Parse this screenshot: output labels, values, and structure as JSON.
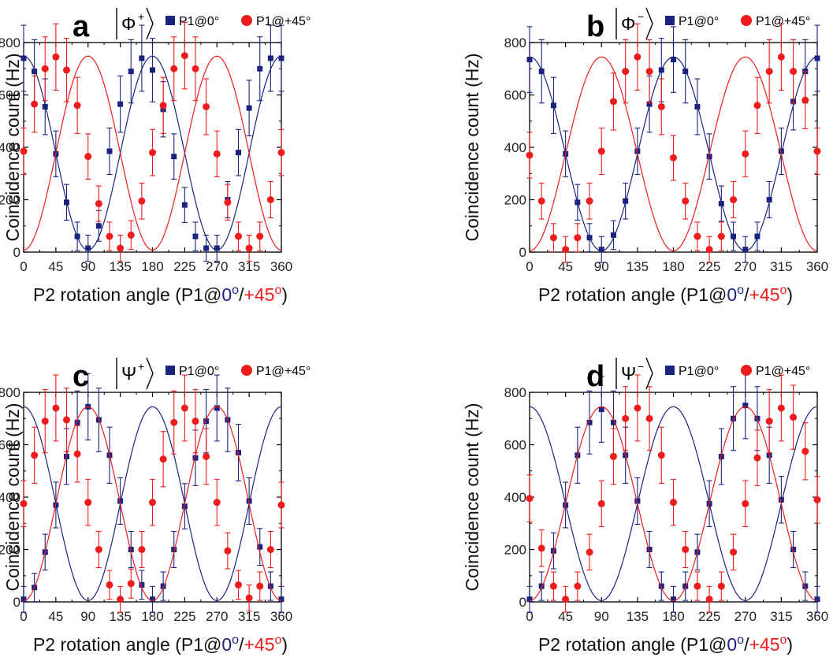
{
  "chart_data": [
    {
      "type": "scatter",
      "panel_label": "a",
      "state": {
        "symbol": "Φ",
        "sign": "+"
      },
      "xlabel": {
        "prefix": "P2 rotation angle (P1@",
        "first": "0",
        "sep": "/",
        "second": "+45",
        "suffix": ")",
        "degree": "o"
      },
      "ylabel": "Coincidence count (Hz)",
      "xlim": [
        0,
        360
      ],
      "ylim": [
        0,
        800
      ],
      "xticks": [
        0,
        45,
        90,
        135,
        180,
        225,
        270,
        315,
        360
      ],
      "yticks": [
        0,
        200,
        400,
        600,
        800
      ],
      "grid": false,
      "legend_position": "top",
      "series": [
        {
          "name": "P1@0°",
          "marker": "square",
          "color": "#1a237e",
          "x": [
            0,
            15,
            30,
            45,
            60,
            75,
            90,
            105,
            120,
            135,
            150,
            165,
            180,
            195,
            210,
            225,
            240,
            255,
            270,
            285,
            300,
            315,
            330,
            345,
            360
          ],
          "y": [
            740,
            690,
            555,
            375,
            190,
            60,
            15,
            100,
            385,
            565,
            690,
            740,
            695,
            545,
            365,
            180,
            60,
            15,
            15,
            200,
            380,
            550,
            700,
            740,
            740
          ],
          "fit": {
            "amplitude": 370,
            "offset": 378,
            "phase_deg": 0
          }
        },
        {
          "name": "P1@+45°",
          "marker": "circle",
          "color": "#ee1c1c",
          "x": [
            0,
            15,
            30,
            45,
            60,
            75,
            90,
            105,
            120,
            135,
            150,
            165,
            180,
            195,
            210,
            225,
            240,
            255,
            270,
            285,
            300,
            315,
            330,
            345,
            360
          ],
          "y": [
            385,
            565,
            700,
            745,
            695,
            560,
            365,
            185,
            60,
            15,
            65,
            195,
            380,
            560,
            700,
            750,
            700,
            555,
            375,
            190,
            60,
            15,
            60,
            200,
            380
          ],
          "fit": {
            "amplitude": 370,
            "offset": 378,
            "phase_deg": 90
          }
        }
      ]
    },
    {
      "type": "scatter",
      "panel_label": "b",
      "state": {
        "symbol": "Φ",
        "sign": "−"
      },
      "xlabel": {
        "prefix": "P2 rotation angle (P1@",
        "first": "0",
        "sep": "/",
        "second": "+45",
        "suffix": ")",
        "degree": "o"
      },
      "ylabel": "Coincidence count (Hz)",
      "xlim": [
        0,
        360
      ],
      "ylim": [
        0,
        800
      ],
      "xticks": [
        0,
        45,
        90,
        135,
        180,
        225,
        270,
        315,
        360
      ],
      "yticks": [
        0,
        200,
        400,
        600,
        800
      ],
      "grid": false,
      "legend_position": "top",
      "series": [
        {
          "name": "P1@0°",
          "marker": "square",
          "color": "#1a237e",
          "x": [
            0,
            15,
            30,
            45,
            60,
            75,
            90,
            105,
            120,
            135,
            150,
            165,
            180,
            195,
            210,
            225,
            240,
            255,
            270,
            285,
            300,
            315,
            330,
            345,
            360
          ],
          "y": [
            735,
            690,
            560,
            375,
            190,
            55,
            10,
            65,
            195,
            385,
            565,
            695,
            735,
            690,
            555,
            365,
            185,
            60,
            10,
            60,
            200,
            385,
            575,
            690,
            740
          ],
          "fit": {
            "amplitude": 370,
            "offset": 375,
            "phase_deg": 0
          }
        },
        {
          "name": "P1@+45°",
          "marker": "circle",
          "color": "#ee1c1c",
          "x": [
            0,
            15,
            30,
            45,
            60,
            75,
            90,
            105,
            120,
            135,
            150,
            165,
            180,
            195,
            210,
            225,
            240,
            255,
            270,
            285,
            300,
            315,
            330,
            345,
            360
          ],
          "y": [
            370,
            195,
            55,
            10,
            55,
            195,
            385,
            575,
            690,
            745,
            690,
            555,
            360,
            195,
            60,
            10,
            60,
            200,
            375,
            560,
            690,
            745,
            690,
            580,
            385
          ],
          "fit": {
            "amplitude": 370,
            "offset": 375,
            "phase_deg": -90
          }
        }
      ]
    },
    {
      "type": "scatter",
      "panel_label": "c",
      "state": {
        "symbol": "Ψ",
        "sign": "+"
      },
      "xlabel": {
        "prefix": "P2 rotation angle (P1@",
        "first": "0",
        "sep": "/",
        "second": "+45",
        "suffix": ")",
        "degree": "o"
      },
      "ylabel": "Coincidence count (Hz)",
      "xlim": [
        0,
        360
      ],
      "ylim": [
        0,
        800
      ],
      "xticks": [
        0,
        45,
        90,
        135,
        180,
        225,
        270,
        315,
        360
      ],
      "yticks": [
        0,
        200,
        400,
        600,
        800
      ],
      "grid": false,
      "legend_position": "top",
      "series": [
        {
          "name": "P1@0°",
          "marker": "square",
          "color": "#1a237e",
          "x": [
            0,
            15,
            30,
            45,
            60,
            75,
            90,
            105,
            120,
            135,
            150,
            165,
            180,
            195,
            210,
            225,
            240,
            255,
            270,
            285,
            300,
            315,
            330,
            345,
            360
          ],
          "y": [
            10,
            55,
            190,
            370,
            555,
            685,
            745,
            695,
            560,
            385,
            200,
            65,
            10,
            60,
            200,
            365,
            550,
            690,
            740,
            695,
            570,
            385,
            210,
            60,
            10
          ],
          "fit": {
            "amplitude": 370,
            "offset": 375,
            "phase_deg": 180
          }
        },
        {
          "name": "P1@+45°",
          "marker": "circle",
          "color": "#ee1c1c",
          "x": [
            0,
            15,
            30,
            45,
            60,
            75,
            90,
            105,
            120,
            135,
            150,
            165,
            180,
            195,
            210,
            225,
            240,
            255,
            270,
            285,
            300,
            315,
            330,
            345,
            360
          ],
          "y": [
            375,
            560,
            690,
            740,
            695,
            565,
            380,
            200,
            65,
            10,
            70,
            200,
            380,
            545,
            685,
            740,
            690,
            555,
            380,
            195,
            65,
            15,
            60,
            200,
            370
          ],
          "fit": {
            "amplitude": 370,
            "offset": 375,
            "phase_deg": 90
          }
        }
      ]
    },
    {
      "type": "scatter",
      "panel_label": "d",
      "state": {
        "symbol": "Ψ",
        "sign": "−"
      },
      "xlabel": {
        "prefix": "P2 rotation angle (P1@",
        "first": "0",
        "sep": "/",
        "second": "+45",
        "suffix": ")",
        "degree": "o"
      },
      "ylabel": "Coincidence count (Hz)",
      "xlim": [
        0,
        360
      ],
      "ylim": [
        0,
        800
      ],
      "xticks": [
        0,
        45,
        90,
        135,
        180,
        225,
        270,
        315,
        360
      ],
      "yticks": [
        0,
        200,
        400,
        600,
        800
      ],
      "grid": false,
      "legend_position": "top",
      "series": [
        {
          "name": "P1@0°",
          "marker": "square",
          "color": "#1a237e",
          "x": [
            0,
            15,
            30,
            45,
            60,
            75,
            90,
            105,
            120,
            135,
            150,
            165,
            180,
            195,
            210,
            225,
            240,
            255,
            270,
            285,
            300,
            315,
            330,
            345,
            360
          ],
          "y": [
            10,
            60,
            195,
            370,
            560,
            685,
            735,
            685,
            560,
            385,
            200,
            60,
            10,
            60,
            190,
            375,
            555,
            700,
            750,
            700,
            560,
            390,
            200,
            60,
            10
          ],
          "fit": {
            "amplitude": 370,
            "offset": 375,
            "phase_deg": 180
          }
        },
        {
          "name": "P1@+45°",
          "marker": "circle",
          "color": "#ee1c1c",
          "x": [
            0,
            15,
            30,
            45,
            60,
            75,
            90,
            105,
            120,
            135,
            150,
            165,
            180,
            195,
            210,
            225,
            240,
            255,
            270,
            285,
            300,
            315,
            330,
            345,
            360
          ],
          "y": [
            395,
            205,
            60,
            10,
            60,
            190,
            375,
            555,
            700,
            740,
            700,
            560,
            380,
            200,
            60,
            10,
            60,
            190,
            375,
            550,
            690,
            740,
            705,
            575,
            390
          ],
          "fit": {
            "amplitude": 370,
            "offset": 375,
            "phase_deg": -90
          }
        }
      ]
    }
  ]
}
